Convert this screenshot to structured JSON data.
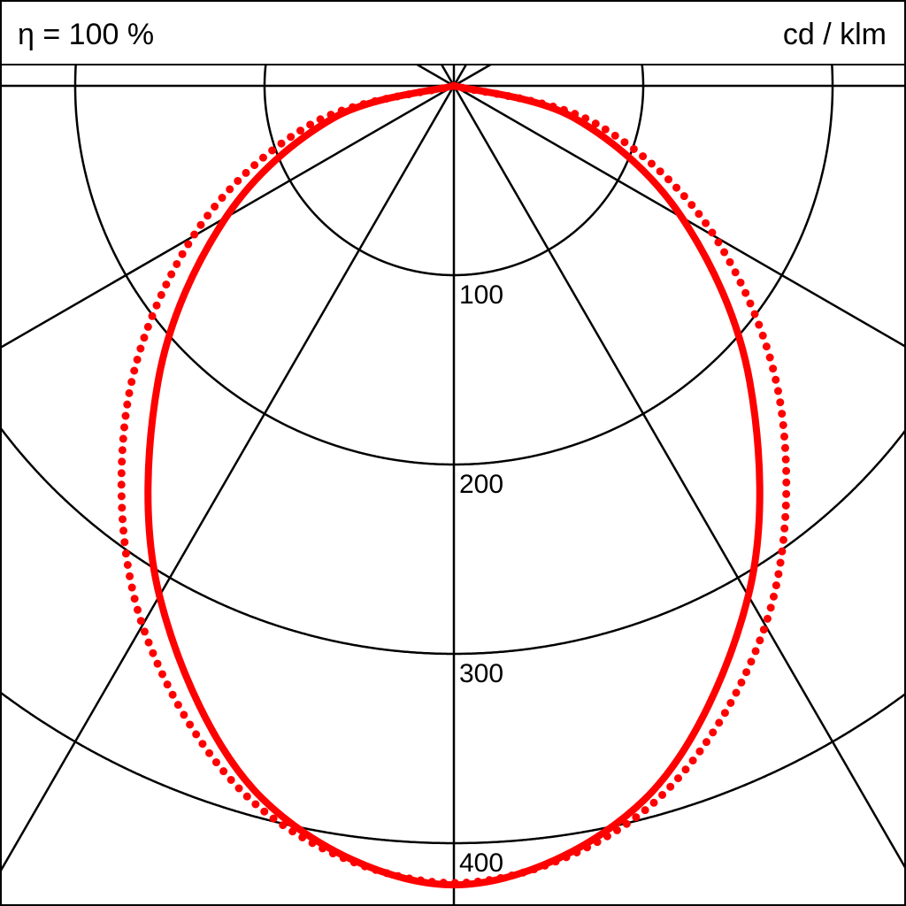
{
  "chart_data": {
    "type": "polar",
    "title_left": "η = 100 %",
    "title_right": "cd / klm",
    "radial_ticks": [
      100,
      200,
      300,
      400
    ],
    "radial_tick_labels": [
      "100",
      "200",
      "300",
      "400"
    ],
    "angle_gridlines_deg": [
      0,
      30,
      60,
      90,
      120,
      150,
      180
    ],
    "grid": true,
    "angles_deg": [
      -90,
      -75,
      -60,
      -45,
      -30,
      -15,
      0,
      15,
      30,
      45,
      60,
      75,
      90
    ],
    "series": [
      {
        "style": "solid",
        "color": "#ff0000",
        "values": [
          0,
          66,
          139,
          221,
          311,
          390,
          422,
          390,
          311,
          221,
          139,
          66,
          0
        ]
      },
      {
        "style": "dotted",
        "color": "#ff0000",
        "values": [
          0,
          78,
          159,
          245,
          329,
          395,
          421,
          395,
          329,
          245,
          159,
          78,
          0
        ]
      }
    ]
  }
}
